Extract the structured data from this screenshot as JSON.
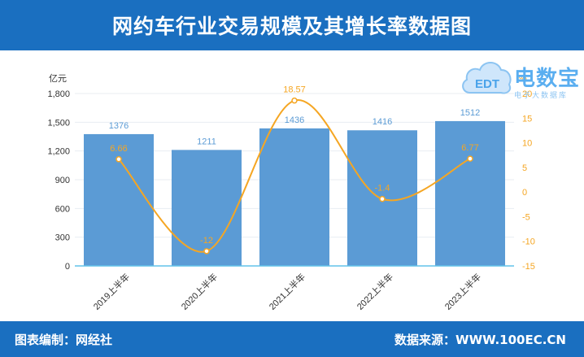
{
  "header": {
    "title": "网约车行业交易规模及其增长率数据图"
  },
  "footer": {
    "left_text": "图表编制：网经社",
    "right_text": "数据来源：WWW.100EC.CN"
  },
  "logo": {
    "text": "电数宝",
    "sub_text": "电子大数据库",
    "badge": "EDT",
    "icon": "cloud-logo-icon"
  },
  "chart_data": {
    "type": "bar",
    "categories": [
      "2019上半年",
      "2020上半年",
      "2021上半年",
      "2022上半年",
      "2023上半年"
    ],
    "series": [
      {
        "values": [
          1376,
          1211,
          1436,
          1416,
          1512
        ],
        "axis": "left",
        "type": "bar",
        "color": "#5b9bd5"
      },
      {
        "values": [
          6.66,
          -12,
          18.57,
          -1.4,
          6.77
        ],
        "axis": "right",
        "type": "line",
        "color": "#f5a623"
      }
    ],
    "left_axis": {
      "unit": "亿元",
      "ylim": [
        0,
        1800
      ],
      "ticks": [
        0,
        300,
        600,
        900,
        1200,
        1500,
        1800
      ],
      "tick_labels": [
        "0",
        "300",
        "600",
        "900",
        "1,200",
        "1,500",
        "1,800"
      ]
    },
    "right_axis": {
      "unit": "%",
      "ylim": [
        -15,
        20
      ],
      "ticks": [
        -15,
        -10,
        -5,
        0,
        5,
        10,
        15,
        20
      ],
      "tick_labels": [
        "-15",
        "-10",
        "-5",
        "0",
        "5",
        "10",
        "15",
        "20"
      ]
    },
    "bar_labels": [
      "1376",
      "1211",
      "1436",
      "1416",
      "1512"
    ],
    "line_labels": [
      "6.66",
      "-12",
      "18.57",
      "-1.4",
      "6.77"
    ],
    "grid": true,
    "legend": "none"
  }
}
